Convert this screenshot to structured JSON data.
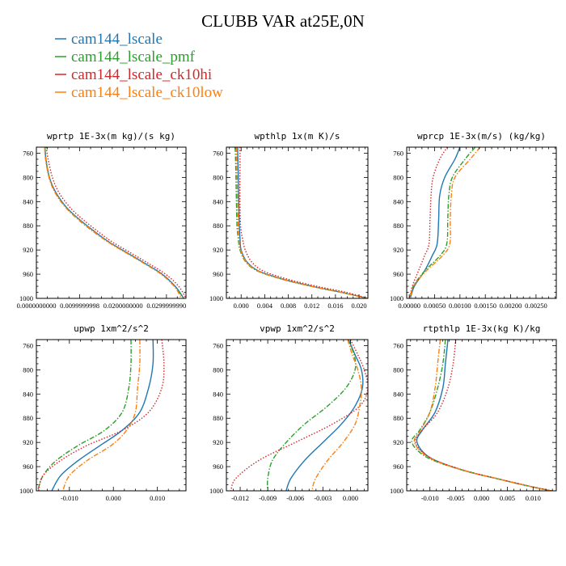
{
  "figure": {
    "title": "CLUBB VAR at25E,0N",
    "legend": [
      {
        "name": "cam144_lscale",
        "color": "#1f77b4",
        "dash": "solid"
      },
      {
        "name": "cam144_lscale_pmf",
        "color": "#2ca02c",
        "dash": "dashdot"
      },
      {
        "name": "cam144_lscale_ck10hi",
        "color": "#d62728",
        "dash": "dotted"
      },
      {
        "name": "cam144_lscale_ck10low",
        "color": "#ff7f0e",
        "dash": "dashdot"
      }
    ]
  },
  "chart_data": [
    {
      "type": "line",
      "title": "wprtp  1E-3x(m kg)/(s kg)",
      "xlim": [
        0.0,
        0.0345
      ],
      "ylim": [
        1000,
        750
      ],
      "xticks": [
        0.0,
        0.01,
        0.02,
        0.03
      ],
      "xtick_labels": [
        "0.0000000000",
        "0.0099999998",
        "0.0200000000",
        "0.0299999990"
      ],
      "yticks": [
        760,
        800,
        840,
        880,
        920,
        960,
        1000
      ],
      "series": [
        {
          "name": "cam144_lscale",
          "x": [
            0.002,
            0.0022,
            0.003,
            0.0045,
            0.007,
            0.01,
            0.0135,
            0.017,
            0.021,
            0.025,
            0.029,
            0.032,
            0.034
          ],
          "y": [
            750,
            770,
            800,
            825,
            850,
            870,
            890,
            908,
            925,
            942,
            960,
            980,
            1000
          ]
        },
        {
          "name": "cam144_lscale_pmf",
          "x": [
            0.002,
            0.0022,
            0.003,
            0.0043,
            0.0068,
            0.0097,
            0.0132,
            0.0168,
            0.0208,
            0.0248,
            0.0288,
            0.0318,
            0.034
          ],
          "y": [
            750,
            770,
            800,
            825,
            850,
            870,
            890,
            908,
            925,
            942,
            960,
            980,
            1000
          ]
        },
        {
          "name": "cam144_lscale_ck10hi",
          "x": [
            0.0023,
            0.0027,
            0.0037,
            0.0052,
            0.0078,
            0.0108,
            0.0143,
            0.0178,
            0.0218,
            0.0258,
            0.0298,
            0.0328,
            0.0345
          ],
          "y": [
            750,
            770,
            800,
            825,
            850,
            870,
            890,
            908,
            925,
            942,
            960,
            980,
            1000
          ]
        },
        {
          "name": "cam144_lscale_ck10low",
          "x": [
            0.0019,
            0.0021,
            0.0029,
            0.0043,
            0.0068,
            0.0098,
            0.0133,
            0.0168,
            0.0208,
            0.0248,
            0.0288,
            0.0318,
            0.0335
          ],
          "y": [
            750,
            770,
            800,
            825,
            850,
            870,
            890,
            908,
            925,
            942,
            960,
            980,
            1000
          ]
        }
      ]
    },
    {
      "type": "line",
      "title": "wpthlp  1x(m K)/s",
      "xlim": [
        -0.0025,
        0.0215
      ],
      "ylim": [
        1000,
        750
      ],
      "xticks": [
        0.0,
        0.004,
        0.008,
        0.012,
        0.016,
        0.02
      ],
      "xtick_labels": [
        "0.000",
        "0.004",
        "0.008",
        "0.012",
        "0.016",
        "0.020"
      ],
      "yticks": [
        760,
        800,
        840,
        880,
        920,
        960,
        1000
      ],
      "series": [
        {
          "name": "cam144_lscale",
          "x": [
            -0.0006,
            -0.0005,
            -0.0004,
            -0.0003,
            -0.0002,
            0.0,
            0.001,
            0.003,
            0.007,
            0.012,
            0.017,
            0.0215
          ],
          "y": [
            750,
            790,
            840,
            880,
            900,
            920,
            940,
            955,
            968,
            980,
            990,
            1000
          ]
        },
        {
          "name": "cam144_lscale_pmf",
          "x": [
            -0.001,
            -0.0009,
            -0.0008,
            -0.0007,
            -0.0005,
            -0.0002,
            0.0008,
            0.0028,
            0.0068,
            0.0118,
            0.0168,
            0.0215
          ],
          "y": [
            750,
            790,
            840,
            880,
            900,
            920,
            940,
            955,
            968,
            980,
            990,
            1000
          ]
        },
        {
          "name": "cam144_lscale_ck10hi",
          "x": [
            -0.0002,
            -0.0002,
            -0.0002,
            -0.0001,
            0.0002,
            0.0007,
            0.0018,
            0.0038,
            0.0078,
            0.0128,
            0.0178,
            0.0215
          ],
          "y": [
            750,
            790,
            840,
            880,
            900,
            920,
            940,
            955,
            968,
            980,
            990,
            1000
          ]
        },
        {
          "name": "cam144_lscale_ck10low",
          "x": [
            -0.0008,
            -0.0007,
            -0.0006,
            -0.0005,
            -0.0004,
            -0.0001,
            0.0009,
            0.0029,
            0.0069,
            0.0119,
            0.0169,
            0.0215
          ],
          "y": [
            750,
            790,
            840,
            880,
            900,
            920,
            940,
            955,
            968,
            980,
            990,
            1000
          ]
        }
      ]
    },
    {
      "type": "line",
      "title": "wprcp  1E-3x(m/s) (kg/kg)",
      "xlim": [
        -5e-05,
        0.0029
      ],
      "ylim": [
        1000,
        750
      ],
      "xticks": [
        0.0,
        0.0005,
        0.001,
        0.0015,
        0.002,
        0.0025
      ],
      "xtick_labels": [
        "0.00000",
        "0.00050",
        "0.00100",
        "0.00150",
        "0.00200",
        "0.00250"
      ],
      "yticks": [
        760,
        800,
        840,
        880,
        920,
        960,
        1000
      ],
      "series": [
        {
          "name": "cam144_lscale",
          "x": [
            0.001,
            0.0009,
            0.0007,
            0.0006,
            0.00058,
            0.00055,
            0.00045,
            0.0003,
            0.0001,
            2e-05
          ],
          "y": [
            750,
            770,
            800,
            830,
            870,
            910,
            930,
            955,
            980,
            1000
          ]
        },
        {
          "name": "cam144_lscale_pmf",
          "x": [
            0.0013,
            0.0011,
            0.00085,
            0.00078,
            0.00076,
            0.00074,
            0.0006,
            0.0003,
            8e-05,
            2e-05
          ],
          "y": [
            750,
            770,
            800,
            830,
            870,
            910,
            930,
            955,
            980,
            1000
          ]
        },
        {
          "name": "cam144_lscale_ck10hi",
          "x": [
            0.00075,
            0.0006,
            0.00047,
            0.00043,
            0.00041,
            0.00039,
            0.0003,
            0.00018,
            6e-05,
            1e-05
          ],
          "y": [
            750,
            770,
            800,
            830,
            870,
            910,
            930,
            955,
            980,
            1000
          ]
        },
        {
          "name": "cam144_lscale_ck10low",
          "x": [
            0.0014,
            0.0012,
            0.0009,
            0.00083,
            0.00081,
            0.0008,
            0.00065,
            0.00033,
            8e-05,
            2e-05
          ],
          "y": [
            750,
            770,
            800,
            830,
            870,
            910,
            930,
            955,
            980,
            1000
          ]
        }
      ]
    },
    {
      "type": "line",
      "title": "upwp  1xm^2/s^2",
      "xlim": [
        -0.0175,
        0.0165
      ],
      "ylim": [
        1000,
        750
      ],
      "xticks": [
        -0.01,
        0.0,
        0.01
      ],
      "xtick_labels": [
        "-0.010",
        "0.000",
        "0.010"
      ],
      "yticks": [
        760,
        800,
        840,
        880,
        920,
        960,
        1000
      ],
      "series": [
        {
          "name": "cam144_lscale",
          "x": [
            0.009,
            0.009,
            0.008,
            0.006,
            0.002,
            -0.003,
            -0.008,
            -0.012,
            -0.014
          ],
          "y": [
            750,
            790,
            830,
            870,
            900,
            925,
            950,
            975,
            1000
          ]
        },
        {
          "name": "cam144_lscale_pmf",
          "x": [
            0.004,
            0.004,
            0.0035,
            0.002,
            -0.002,
            -0.008,
            -0.013,
            -0.016,
            -0.0172
          ],
          "y": [
            750,
            790,
            830,
            870,
            900,
            925,
            950,
            975,
            1000
          ]
        },
        {
          "name": "cam144_lscale_ck10hi",
          "x": [
            0.011,
            0.0115,
            0.011,
            0.008,
            0.002,
            -0.006,
            -0.012,
            -0.016,
            -0.017
          ],
          "y": [
            750,
            790,
            830,
            870,
            900,
            925,
            950,
            975,
            1000
          ]
        },
        {
          "name": "cam144_lscale_ck10low",
          "x": [
            0.006,
            0.006,
            0.0055,
            0.005,
            0.003,
            -0.0005,
            -0.006,
            -0.01,
            -0.0115
          ],
          "y": [
            750,
            790,
            830,
            870,
            900,
            925,
            950,
            975,
            1000
          ]
        }
      ]
    },
    {
      "type": "line",
      "title": "vpwp  1xm^2/s^2",
      "xlim": [
        -0.0135,
        0.0019
      ],
      "ylim": [
        1000,
        750
      ],
      "xticks": [
        -0.012,
        -0.009,
        -0.006,
        -0.003,
        0.0
      ],
      "xtick_labels": [
        "-0.012",
        "-0.009",
        "-0.006",
        "-0.003",
        "0.000"
      ],
      "yticks": [
        760,
        800,
        840,
        880,
        920,
        960,
        1000
      ],
      "series": [
        {
          "name": "cam144_lscale",
          "x": [
            -0.0002,
            0.0005,
            0.0012,
            0.0013,
            0.0005,
            -0.001,
            -0.003,
            -0.005,
            -0.0065,
            -0.007
          ],
          "y": [
            750,
            775,
            800,
            830,
            860,
            890,
            920,
            950,
            980,
            1000
          ]
        },
        {
          "name": "cam144_lscale_pmf",
          "x": [
            -0.0003,
            0.0004,
            0.0005,
            -0.0005,
            -0.0025,
            -0.005,
            -0.007,
            -0.0085,
            -0.009,
            -0.009
          ],
          "y": [
            750,
            775,
            800,
            830,
            860,
            890,
            920,
            950,
            980,
            1000
          ]
        },
        {
          "name": "cam144_lscale_ck10hi",
          "x": [
            0.0,
            0.0008,
            0.0015,
            0.0019,
            0.001,
            -0.002,
            -0.006,
            -0.01,
            -0.0125,
            -0.013
          ],
          "y": [
            750,
            775,
            800,
            830,
            860,
            890,
            920,
            950,
            980,
            1000
          ]
        },
        {
          "name": "cam144_lscale_ck10low",
          "x": [
            -0.0003,
            0.0002,
            0.0008,
            0.0012,
            0.001,
            0.0005,
            -0.0008,
            -0.0025,
            -0.0038,
            -0.0042
          ],
          "y": [
            750,
            775,
            800,
            830,
            860,
            890,
            920,
            950,
            980,
            1000
          ]
        }
      ]
    },
    {
      "type": "line",
      "title": "rtpthlp  1E-3x(kg K)/kg",
      "xlim": [
        -0.0145,
        0.0145
      ],
      "ylim": [
        1000,
        750
      ],
      "xticks": [
        -0.01,
        -0.005,
        0.0,
        0.005,
        0.01
      ],
      "xtick_labels": [
        "-0.010",
        "-0.005",
        "0.000",
        "0.005",
        "0.010"
      ],
      "yticks": [
        760,
        800,
        840,
        880,
        920,
        960,
        1000
      ],
      "series": [
        {
          "name": "cam144_lscale",
          "x": [
            -0.0065,
            -0.007,
            -0.0075,
            -0.009,
            -0.0115,
            -0.0125,
            -0.01,
            -0.004,
            0.003,
            0.009,
            0.0135
          ],
          "y": [
            750,
            790,
            830,
            870,
            900,
            920,
            945,
            965,
            980,
            992,
            1000
          ]
        },
        {
          "name": "cam144_lscale_pmf",
          "x": [
            -0.007,
            -0.0075,
            -0.0085,
            -0.01,
            -0.012,
            -0.0135,
            -0.0105,
            -0.004,
            0.003,
            0.009,
            0.0135
          ],
          "y": [
            750,
            790,
            830,
            870,
            900,
            920,
            945,
            965,
            980,
            992,
            1000
          ]
        },
        {
          "name": "cam144_lscale_ck10hi",
          "x": [
            -0.005,
            -0.0055,
            -0.0065,
            -0.0085,
            -0.0115,
            -0.0128,
            -0.01,
            -0.0038,
            0.0032,
            0.0092,
            0.0137
          ],
          "y": [
            750,
            790,
            830,
            870,
            900,
            920,
            945,
            965,
            980,
            992,
            1000
          ]
        },
        {
          "name": "cam144_lscale_ck10low",
          "x": [
            -0.008,
            -0.0085,
            -0.009,
            -0.01,
            -0.0118,
            -0.013,
            -0.0102,
            -0.004,
            0.003,
            0.009,
            0.0135
          ],
          "y": [
            750,
            790,
            830,
            870,
            900,
            920,
            945,
            965,
            980,
            992,
            1000
          ]
        }
      ]
    }
  ]
}
